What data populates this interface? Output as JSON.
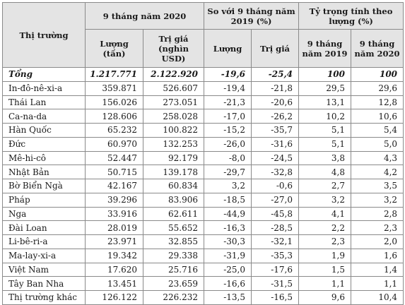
{
  "header": {
    "market": "Thị trường",
    "group_2020": "9 tháng năm 2020",
    "group_compare": "So với 9 tháng năm 2019 (%)",
    "group_share": "Tỷ trọng tính theo lượng (%)",
    "volume": "Lượng (tấn)",
    "value": "Trị giá (nghìn USD)",
    "cmp_volume": "Lượng",
    "cmp_value": "Trị giá",
    "share_2019": "9 tháng năm 2019",
    "share_2020": "9 tháng năm 2020"
  },
  "rows": [
    {
      "market": "Tổng",
      "volume": "1.217.771",
      "value": "2.122.920",
      "cmp_volume": "-19,6",
      "cmp_value": "-25,4",
      "share_2019": "100",
      "share_2020": "100"
    },
    {
      "market": "In-đô-nê-xi-a",
      "volume": "359.871",
      "value": "526.607",
      "cmp_volume": "-19,4",
      "cmp_value": "-21,8",
      "share_2019": "29,5",
      "share_2020": "29,6"
    },
    {
      "market": "Thái Lan",
      "volume": "156.026",
      "value": "273.051",
      "cmp_volume": "-21,3",
      "cmp_value": "-20,6",
      "share_2019": "13,1",
      "share_2020": "12,8"
    },
    {
      "market": "Ca-na-da",
      "volume": "128.606",
      "value": "258.028",
      "cmp_volume": "-17,0",
      "cmp_value": "-26,2",
      "share_2019": "10,2",
      "share_2020": "10,6"
    },
    {
      "market": "Hàn Quốc",
      "volume": "65.232",
      "value": "100.822",
      "cmp_volume": "-15,2",
      "cmp_value": "-35,7",
      "share_2019": "5,1",
      "share_2020": "5,4"
    },
    {
      "market": "Đức",
      "volume": "60.970",
      "value": "132.253",
      "cmp_volume": "-26,0",
      "cmp_value": "-31,6",
      "share_2019": "5,1",
      "share_2020": "5,0"
    },
    {
      "market": "Mê-hi-cô",
      "volume": "52.447",
      "value": "92.179",
      "cmp_volume": "-8,0",
      "cmp_value": "-24,5",
      "share_2019": "3,8",
      "share_2020": "4,3"
    },
    {
      "market": "Nhật Bản",
      "volume": "50.715",
      "value": "139.178",
      "cmp_volume": "-29,7",
      "cmp_value": "-32,8",
      "share_2019": "4,8",
      "share_2020": "4,2"
    },
    {
      "market": "Bờ Biển Ngà",
      "volume": "42.167",
      "value": "60.834",
      "cmp_volume": "3,2",
      "cmp_value": "-0,6",
      "share_2019": "2,7",
      "share_2020": "3,5"
    },
    {
      "market": "Pháp",
      "volume": "39.296",
      "value": "83.906",
      "cmp_volume": "-18,5",
      "cmp_value": "-27,0",
      "share_2019": "3,2",
      "share_2020": "3,2"
    },
    {
      "market": "Nga",
      "volume": "33.916",
      "value": "62.611",
      "cmp_volume": "-44,9",
      "cmp_value": "-45,8",
      "share_2019": "4,1",
      "share_2020": "2,8"
    },
    {
      "market": "Đài Loan",
      "volume": "28.019",
      "value": "55.652",
      "cmp_volume": "-16,3",
      "cmp_value": "-28,5",
      "share_2019": "2,2",
      "share_2020": "2,3"
    },
    {
      "market": "Li-bê-ri-a",
      "volume": "23.971",
      "value": "32.855",
      "cmp_volume": "-30,3",
      "cmp_value": "-32,1",
      "share_2019": "2,3",
      "share_2020": "2,0"
    },
    {
      "market": "Ma-lay-xi-a",
      "volume": "19.342",
      "value": "29.338",
      "cmp_volume": "-31,9",
      "cmp_value": "-35,3",
      "share_2019": "1,9",
      "share_2020": "1,6"
    },
    {
      "market": "Việt Nam",
      "volume": "17.620",
      "value": "25.716",
      "cmp_volume": "-25,0",
      "cmp_value": "-17,6",
      "share_2019": "1,5",
      "share_2020": "1,4"
    },
    {
      "market": "Tây Ban Nha",
      "volume": "13.451",
      "value": "23.659",
      "cmp_volume": "-16,6",
      "cmp_value": "-31,5",
      "share_2019": "1,1",
      "share_2020": "1,1"
    },
    {
      "market": "Thị trường khác",
      "volume": "126.122",
      "value": "226.232",
      "cmp_volume": "-13,5",
      "cmp_value": "-16,5",
      "share_2019": "9,6",
      "share_2020": "10,4"
    }
  ]
}
